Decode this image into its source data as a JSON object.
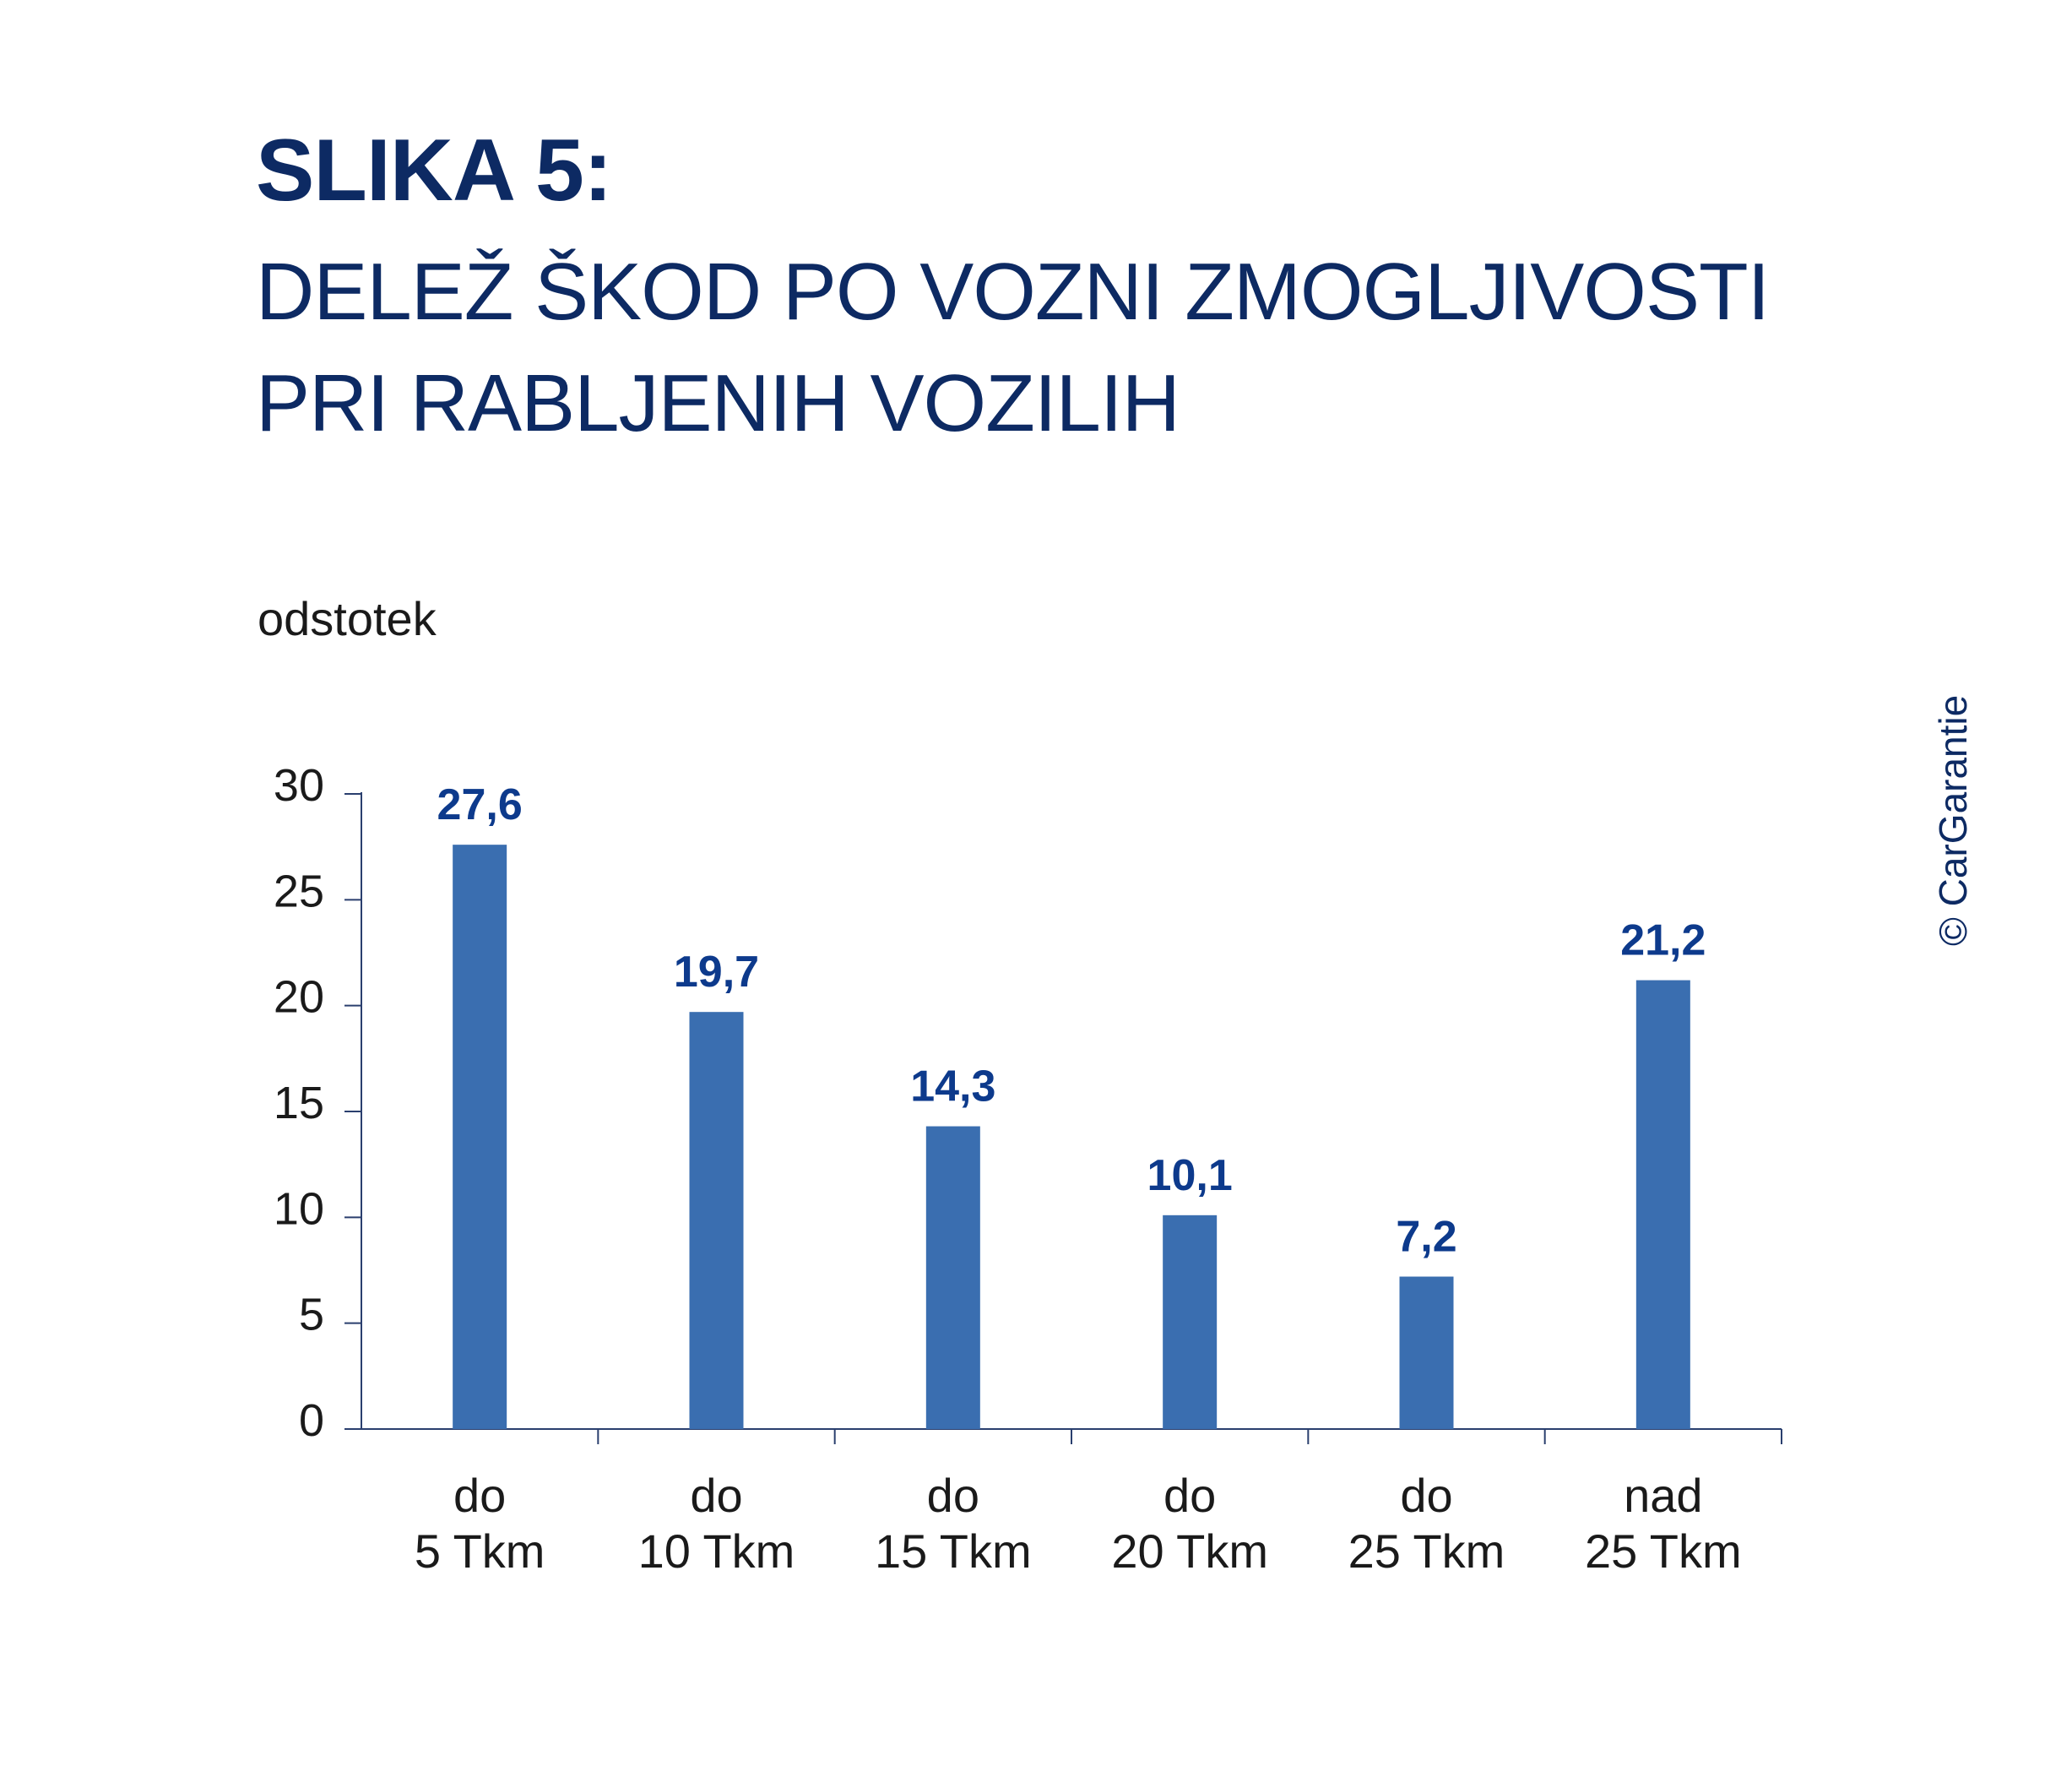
{
  "title": {
    "bold": "SLIKA 5:",
    "line1": "DELEŽ ŠKOD PO VOZNI ZMOGLJIVOSTI",
    "line2": "PRI RABLJENIH VOZILIH"
  },
  "copyright": "© CarGarantie",
  "colors": {
    "bar": "#3a6eb0",
    "value_label": "#0d3a8c",
    "axis": "#2a3f6e",
    "text": "#1a1a1a",
    "title": "#0d2a63"
  },
  "chart_data": {
    "type": "bar",
    "ylabel": "odstotek",
    "ylim": [
      0,
      30
    ],
    "yticks": [
      "0",
      "5",
      "10",
      "15",
      "20",
      "25",
      "30"
    ],
    "categories": [
      [
        "do",
        "5 Tkm"
      ],
      [
        "do",
        "10 Tkm"
      ],
      [
        "do",
        "15 Tkm"
      ],
      [
        "do",
        "20 Tkm"
      ],
      [
        "do",
        "25 Tkm"
      ],
      [
        "nad",
        "25 Tkm"
      ]
    ],
    "values": [
      27.6,
      19.7,
      14.3,
      10.1,
      7.2,
      21.2
    ],
    "value_labels": [
      "27,6",
      "19,7",
      "14,3",
      "10,1",
      "7,2",
      "21,2"
    ],
    "grid": false,
    "legend": "none"
  }
}
